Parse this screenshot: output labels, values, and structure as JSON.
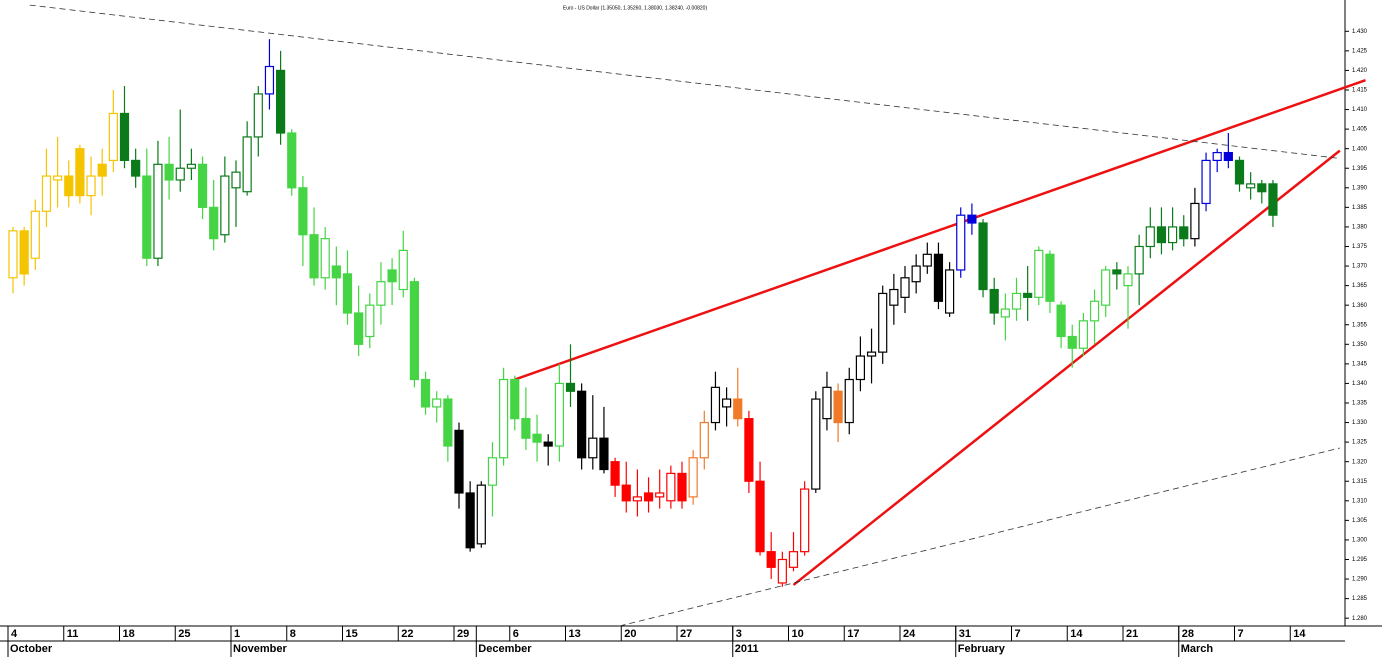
{
  "chart_data": {
    "type": "candlestick",
    "subtitle": "Euro - US Dollar (1.35050, 1.35260, 1.38030, 1.38240, -0.00820)",
    "categories": [
      "4",
      null,
      null,
      null,
      null,
      "11",
      null,
      null,
      null,
      null,
      "18",
      null,
      null,
      null,
      null,
      "25",
      null,
      null,
      null,
      null,
      "1",
      null,
      null,
      null,
      null,
      "8",
      null,
      null,
      null,
      null,
      "15",
      null,
      null,
      null,
      null,
      "22",
      null,
      null,
      null,
      null,
      "29",
      null,
      null,
      null,
      null,
      "6",
      null,
      null,
      null,
      null,
      "13",
      null,
      null,
      null,
      null,
      "20",
      null,
      null,
      null,
      null,
      "27",
      null,
      null,
      null,
      null,
      "3",
      null,
      null,
      null,
      null,
      "10",
      null,
      null,
      null,
      null,
      "17",
      null,
      null,
      null,
      null,
      "24",
      null,
      null,
      null,
      null,
      "31",
      null,
      null,
      null,
      null,
      "7",
      null,
      null,
      null,
      null,
      "14",
      null,
      null,
      null,
      null,
      "21",
      null,
      null,
      null,
      null,
      "28",
      null,
      null,
      null,
      null,
      "7",
      null,
      null,
      null,
      null,
      "14"
    ],
    "months": [
      "October",
      null,
      null,
      null,
      null,
      null,
      null,
      null,
      null,
      null,
      null,
      null,
      null,
      null,
      null,
      null,
      null,
      null,
      null,
      null,
      "November",
      null,
      null,
      null,
      null,
      null,
      null,
      null,
      null,
      null,
      null,
      null,
      null,
      null,
      null,
      null,
      null,
      null,
      null,
      null,
      null,
      null,
      "December",
      null,
      null,
      null,
      null,
      null,
      null,
      null,
      null,
      null,
      null,
      null,
      null,
      null,
      null,
      null,
      null,
      null,
      null,
      null,
      null,
      null,
      null,
      "2011",
      null,
      null,
      null,
      null,
      null,
      null,
      null,
      null,
      null,
      null,
      null,
      null,
      null,
      null,
      null,
      null,
      null,
      null,
      null,
      "February",
      null,
      null,
      null,
      null,
      null,
      null,
      null,
      null,
      null,
      null,
      null,
      null,
      null,
      null,
      null,
      null,
      null,
      null,
      null,
      "March",
      null,
      null,
      null,
      null,
      null,
      null,
      null,
      null,
      null
    ],
    "open": [
      1.367,
      1.379,
      1.372,
      1.384,
      1.392,
      1.393,
      1.4,
      1.388,
      1.396,
      1.397,
      1.409,
      1.397,
      1.393,
      1.372,
      1.396,
      1.392,
      1.395,
      1.396,
      1.385,
      1.378,
      1.39,
      1.389,
      1.403,
      1.414,
      1.42,
      1.404,
      1.39,
      1.378,
      1.367,
      1.37,
      1.368,
      1.358,
      1.352,
      1.36,
      1.369,
      1.364,
      1.366,
      1.341,
      1.334,
      1.336,
      1.328,
      1.312,
      1.299,
      1.314,
      1.321,
      1.341,
      1.331,
      1.327,
      1.325,
      1.324,
      1.34,
      1.338,
      1.321,
      1.326,
      1.32,
      1.314,
      1.31,
      1.312,
      1.311,
      1.31,
      1.317,
      1.311,
      1.321,
      1.33,
      1.334,
      1.336,
      1.331,
      1.315,
      1.297,
      1.289,
      1.293,
      1.297,
      1.313,
      1.331,
      1.338,
      1.33,
      1.341,
      1.347,
      1.348,
      1.36,
      1.362,
      1.366,
      1.37,
      1.373,
      1.358,
      1.369,
      1.383,
      1.381,
      1.364,
      1.357,
      1.359,
      1.363,
      1.362,
      1.373,
      1.36,
      1.352,
      1.349,
      1.356,
      1.36,
      1.369,
      1.365,
      1.368,
      1.375,
      1.38,
      1.376,
      1.38,
      1.377,
      1.386,
      1.397,
      1.399,
      1.397,
      1.39,
      1.391,
      1.391,
      null,
      null
    ],
    "high": [
      1.38,
      1.38,
      1.387,
      1.4,
      1.403,
      1.397,
      1.401,
      1.398,
      1.4,
      1.415,
      1.416,
      1.4,
      1.4,
      1.402,
      1.403,
      1.41,
      1.4,
      1.398,
      1.392,
      1.398,
      1.397,
      1.407,
      1.416,
      1.428,
      1.425,
      1.405,
      1.393,
      1.385,
      1.38,
      1.375,
      1.374,
      1.365,
      1.363,
      1.371,
      1.372,
      1.379,
      1.367,
      1.343,
      1.338,
      1.337,
      1.33,
      1.315,
      1.315,
      1.325,
      1.344,
      1.342,
      1.339,
      1.332,
      1.327,
      1.345,
      1.35,
      1.34,
      1.337,
      1.334,
      1.321,
      1.32,
      1.318,
      1.316,
      1.318,
      1.319,
      1.32,
      1.323,
      1.333,
      1.343,
      1.339,
      1.344,
      1.333,
      1.32,
      1.302,
      1.297,
      1.302,
      1.315,
      1.338,
      1.343,
      1.34,
      1.344,
      1.352,
      1.354,
      1.365,
      1.368,
      1.37,
      1.373,
      1.376,
      1.376,
      1.371,
      1.385,
      1.386,
      1.382,
      1.367,
      1.363,
      1.367,
      1.37,
      1.375,
      1.374,
      1.361,
      1.355,
      1.358,
      1.364,
      1.37,
      1.371,
      1.37,
      1.378,
      1.385,
      1.385,
      1.385,
      1.383,
      1.39,
      1.399,
      1.4,
      1.404,
      1.398,
      1.394,
      1.392,
      1.392,
      null,
      null
    ],
    "low": [
      1.363,
      1.365,
      1.369,
      1.38,
      1.385,
      1.385,
      1.386,
      1.383,
      1.388,
      1.394,
      1.395,
      1.39,
      1.37,
      1.37,
      1.387,
      1.389,
      1.392,
      1.382,
      1.374,
      1.376,
      1.38,
      1.388,
      1.398,
      1.41,
      1.401,
      1.388,
      1.37,
      1.365,
      1.364,
      1.36,
      1.355,
      1.347,
      1.349,
      1.355,
      1.36,
      1.362,
      1.339,
      1.332,
      1.33,
      1.32,
      1.308,
      1.297,
      1.298,
      1.306,
      1.319,
      1.328,
      1.323,
      1.32,
      1.319,
      1.32,
      1.334,
      1.318,
      1.318,
      1.317,
      1.311,
      1.307,
      1.306,
      1.307,
      1.308,
      1.308,
      1.308,
      1.309,
      1.318,
      1.328,
      1.329,
      1.329,
      1.312,
      1.296,
      1.29,
      1.288,
      1.292,
      1.296,
      1.312,
      1.328,
      1.325,
      1.327,
      1.338,
      1.34,
      1.345,
      1.355,
      1.358,
      1.363,
      1.368,
      1.359,
      1.357,
      1.367,
      1.378,
      1.362,
      1.355,
      1.351,
      1.356,
      1.356,
      1.36,
      1.358,
      1.349,
      1.344,
      1.347,
      1.35,
      1.357,
      1.364,
      1.354,
      1.36,
      1.372,
      1.373,
      1.374,
      1.375,
      1.375,
      1.384,
      1.394,
      1.395,
      1.389,
      1.387,
      1.386,
      1.38,
      null,
      null
    ],
    "close": [
      1.379,
      1.368,
      1.384,
      1.393,
      1.393,
      1.388,
      1.388,
      1.393,
      1.393,
      1.409,
      1.397,
      1.393,
      1.372,
      1.396,
      1.392,
      1.395,
      1.396,
      1.385,
      1.377,
      1.393,
      1.394,
      1.403,
      1.414,
      1.421,
      1.404,
      1.39,
      1.378,
      1.367,
      1.377,
      1.367,
      1.358,
      1.35,
      1.36,
      1.366,
      1.366,
      1.374,
      1.341,
      1.334,
      1.336,
      1.324,
      1.312,
      1.298,
      1.314,
      1.321,
      1.341,
      1.331,
      1.326,
      1.325,
      1.324,
      1.34,
      1.338,
      1.321,
      1.326,
      1.318,
      1.314,
      1.31,
      1.311,
      1.31,
      1.312,
      1.317,
      1.31,
      1.321,
      1.33,
      1.339,
      1.336,
      1.331,
      1.315,
      1.297,
      1.293,
      1.295,
      1.297,
      1.313,
      1.336,
      1.339,
      1.33,
      1.341,
      1.347,
      1.348,
      1.363,
      1.364,
      1.367,
      1.37,
      1.373,
      1.361,
      1.369,
      1.383,
      1.381,
      1.364,
      1.358,
      1.359,
      1.363,
      1.362,
      1.374,
      1.361,
      1.352,
      1.349,
      1.356,
      1.361,
      1.369,
      1.368,
      1.368,
      1.375,
      1.38,
      1.376,
      1.38,
      1.377,
      1.386,
      1.397,
      1.399,
      1.397,
      1.391,
      1.391,
      1.389,
      1.383,
      null,
      null
    ],
    "colors": [
      "#f5c400",
      "#f5c400",
      "#f5c400",
      "#f5c400",
      "#f5c400",
      "#f5c400",
      "#f5c400",
      "#f5c400",
      "#f5c400",
      "#f5c400",
      "#0a7a1a",
      "#0a7a1a",
      "#44d444",
      "#0a7a1a",
      "#44d444",
      "#0a7a1a",
      "#0a7a1a",
      "#44d444",
      "#44d444",
      "#0a7a1a",
      "#0a7a1a",
      "#0a7a1a",
      "#0a7a1a",
      "#0000dd",
      "#0a7a1a",
      "#44d444",
      "#44d444",
      "#44d444",
      "#44d444",
      "#44d444",
      "#44d444",
      "#44d444",
      "#44d444",
      "#44d444",
      "#44d444",
      "#44d444",
      "#44d444",
      "#44d444",
      "#44d444",
      "#44d444",
      "#000000",
      "#000000",
      "#000000",
      "#44d444",
      "#44d444",
      "#44d444",
      "#44d444",
      "#44d444",
      "#000000",
      "#44d444",
      "#0a7a1a",
      "#000000",
      "#000000",
      "#000000",
      "#ff0000",
      "#ff0000",
      "#ff0000",
      "#ff0000",
      "#ff0000",
      "#ff0000",
      "#ff0000",
      "#f07a28",
      "#f07a28",
      "#000000",
      "#000000",
      "#f07a28",
      "#ff0000",
      "#ff0000",
      "#ff0000",
      "#ff0000",
      "#ff0000",
      "#ff0000",
      "#000000",
      "#000000",
      "#f07a28",
      "#000000",
      "#000000",
      "#000000",
      "#000000",
      "#000000",
      "#000000",
      "#000000",
      "#000000",
      "#000000",
      "#000000",
      "#0000dd",
      "#0000dd",
      "#0a7a1a",
      "#0a7a1a",
      "#44d444",
      "#44d444",
      "#0a7a1a",
      "#44d444",
      "#44d444",
      "#44d444",
      "#44d444",
      "#44d444",
      "#44d444",
      "#44d444",
      "#0a7a1a",
      "#44d444",
      "#0a7a1a",
      "#0a7a1a",
      "#0a7a1a",
      "#0a7a1a",
      "#0a7a1a",
      "#000000",
      "#0000dd",
      "#0000dd",
      "#0000dd",
      "#0a7a1a",
      "#0a7a1a",
      "#0a7a1a",
      "#0a7a1a",
      null,
      null
    ],
    "trendlines": [
      {
        "x": [
          45,
          121.3
        ],
        "values": [
          1.341,
          1.4175
        ],
        "color": "#ee1111",
        "dashed": false
      },
      {
        "x": [
          70,
          119
        ],
        "values": [
          1.2885,
          1.3995
        ],
        "color": "#ee1111",
        "dashed": false
      },
      {
        "x": [
          1.5,
          119
        ],
        "values": [
          1.4367,
          1.3975
        ],
        "color": "#333333",
        "dashed": true
      },
      {
        "x": [
          54.4,
          119
        ],
        "values": [
          1.278,
          1.3235
        ],
        "color": "#333333",
        "dashed": true
      }
    ],
    "ylim": [
      1.278,
      1.438
    ],
    "yticks": [
      {
        "value": 1.28,
        "label": "1.280"
      },
      {
        "value": 1.285,
        "label": "1.285"
      },
      {
        "value": 1.29,
        "label": "1.290"
      },
      {
        "value": 1.295,
        "label": "1.295"
      },
      {
        "value": 1.3,
        "label": "1.300"
      },
      {
        "value": 1.305,
        "label": "1.305"
      },
      {
        "value": 1.31,
        "label": "1.310"
      },
      {
        "value": 1.315,
        "label": "1.315"
      },
      {
        "value": 1.32,
        "label": "1.320"
      },
      {
        "value": 1.325,
        "label": "1.325"
      },
      {
        "value": 1.33,
        "label": "1.330"
      },
      {
        "value": 1.335,
        "label": "1.335"
      },
      {
        "value": 1.34,
        "label": "1.340"
      },
      {
        "value": 1.345,
        "label": "1.345"
      },
      {
        "value": 1.35,
        "label": "1.350"
      },
      {
        "value": 1.355,
        "label": "1.355"
      },
      {
        "value": 1.36,
        "label": "1.360"
      },
      {
        "value": 1.365,
        "label": "1.365"
      },
      {
        "value": 1.37,
        "label": "1.370"
      },
      {
        "value": 1.375,
        "label": "1.375"
      },
      {
        "value": 1.38,
        "label": "1.380"
      },
      {
        "value": 1.385,
        "label": "1.385"
      },
      {
        "value": 1.39,
        "label": "1.390"
      },
      {
        "value": 1.395,
        "label": "1.395"
      },
      {
        "value": 1.4,
        "label": "1.400"
      },
      {
        "value": 1.405,
        "label": "1.405"
      },
      {
        "value": 1.41,
        "label": "1.410"
      },
      {
        "value": 1.415,
        "label": "1.415"
      },
      {
        "value": 1.42,
        "label": "1.420"
      },
      {
        "value": 1.425,
        "label": "1.425"
      },
      {
        "value": 1.43,
        "label": "1.430"
      }
    ]
  }
}
